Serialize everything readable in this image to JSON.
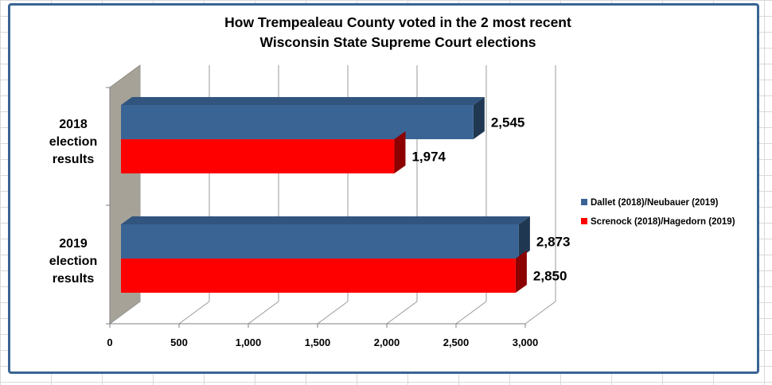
{
  "chart_data": {
    "type": "bar",
    "orientation": "horizontal",
    "title_lines": [
      "How Trempealeau County voted in the 2 most recent",
      "Wisconsin State Supreme Court elections"
    ],
    "categories": [
      [
        "2018",
        "election",
        "results"
      ],
      [
        "2019",
        "election",
        "results"
      ]
    ],
    "series": [
      {
        "name": "Dallet (2018)/Neubauer (2019)",
        "color": "#3a6494",
        "values": [
          2545,
          2873
        ],
        "labels": [
          "2,545",
          "2,873"
        ]
      },
      {
        "name": "Screnock (2018)/Hagedorn (2019)",
        "color": "#ff0000",
        "values": [
          1974,
          2850
        ],
        "labels": [
          "1,974",
          "2,850"
        ]
      }
    ],
    "xlim": [
      0,
      3000
    ],
    "ticks": [
      "0",
      "500",
      "1,000",
      "1,500",
      "2,000",
      "2,500",
      "3,000"
    ],
    "grid": true,
    "legend_position": "right"
  }
}
